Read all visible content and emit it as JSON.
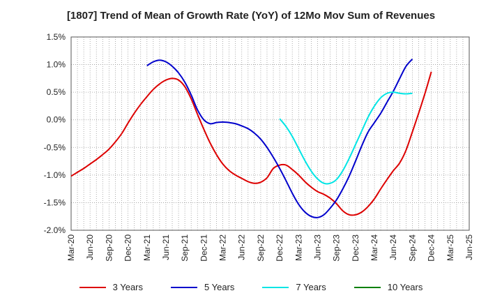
{
  "chart_data": {
    "type": "line",
    "title": "[1807]  Trend of Mean of Growth Rate (YoY) of 12Mo Mov Sum of Revenues",
    "xlabel": "",
    "ylabel": "",
    "ylim": [
      -2.0,
      1.5
    ],
    "y_ticks": [
      "1.5%",
      "1.0%",
      "0.5%",
      "0.0%",
      "-0.5%",
      "-1.0%",
      "-1.5%",
      "-2.0%"
    ],
    "y_tick_values": [
      1.5,
      1.0,
      0.5,
      0.0,
      -0.5,
      -1.0,
      -1.5,
      -2.0
    ],
    "x_ticks": [
      "Mar-20",
      "Jun-20",
      "Sep-20",
      "Dec-20",
      "Mar-21",
      "Jun-21",
      "Sep-21",
      "Dec-21",
      "Mar-22",
      "Jun-22",
      "Sep-22",
      "Dec-22",
      "Mar-23",
      "Jun-23",
      "Sep-23",
      "Dec-23",
      "Mar-24",
      "Jun-24",
      "Sep-24",
      "Dec-24",
      "Mar-25",
      "Jun-25"
    ],
    "grid": true,
    "legend_position": "bottom",
    "series": [
      {
        "name": "3 Years",
        "color": "#dd0000",
        "start_index": 0,
        "values": [
          -1.02,
          -0.95,
          -0.88,
          -0.8,
          -0.72,
          -0.63,
          -0.53,
          -0.4,
          -0.25,
          -0.06,
          0.12,
          0.28,
          0.42,
          0.55,
          0.65,
          0.72,
          0.75,
          0.72,
          0.6,
          0.38,
          0.1,
          -0.17,
          -0.42,
          -0.63,
          -0.8,
          -0.92,
          -1.0,
          -1.06,
          -1.12,
          -1.15,
          -1.13,
          -1.05,
          -0.88,
          -0.82,
          -0.82,
          -0.9,
          -1.0,
          -1.12,
          -1.22,
          -1.3,
          -1.35,
          -1.42,
          -1.52,
          -1.65,
          -1.72,
          -1.72,
          -1.67,
          -1.57,
          -1.43,
          -1.25,
          -1.08,
          -0.92,
          -0.78,
          -0.55,
          -0.22,
          0.12,
          0.48,
          0.87
        ]
      },
      {
        "name": "5 Years",
        "color": "#0000cc",
        "start_index": 12,
        "values": [
          0.98,
          1.05,
          1.08,
          1.05,
          0.97,
          0.85,
          0.68,
          0.45,
          0.18,
          0.0,
          -0.07,
          -0.05,
          -0.04,
          -0.05,
          -0.07,
          -0.11,
          -0.16,
          -0.24,
          -0.35,
          -0.5,
          -0.68,
          -0.88,
          -1.1,
          -1.33,
          -1.53,
          -1.67,
          -1.75,
          -1.77,
          -1.72,
          -1.6,
          -1.45,
          -1.25,
          -1.02,
          -0.75,
          -0.47,
          -0.22,
          -0.05,
          0.12,
          0.32,
          0.52,
          0.75,
          0.97,
          1.1
        ]
      },
      {
        "name": "7 Years",
        "color": "#00e5e5",
        "start_index": 33,
        "values": [
          0.02,
          -0.12,
          -0.3,
          -0.52,
          -0.74,
          -0.93,
          -1.07,
          -1.15,
          -1.15,
          -1.08,
          -0.92,
          -0.7,
          -0.45,
          -0.2,
          0.05,
          0.25,
          0.4,
          0.48,
          0.5,
          0.48,
          0.47,
          0.48
        ]
      },
      {
        "name": "10 Years",
        "color": "#008000",
        "start_index": 0,
        "values": []
      }
    ]
  }
}
